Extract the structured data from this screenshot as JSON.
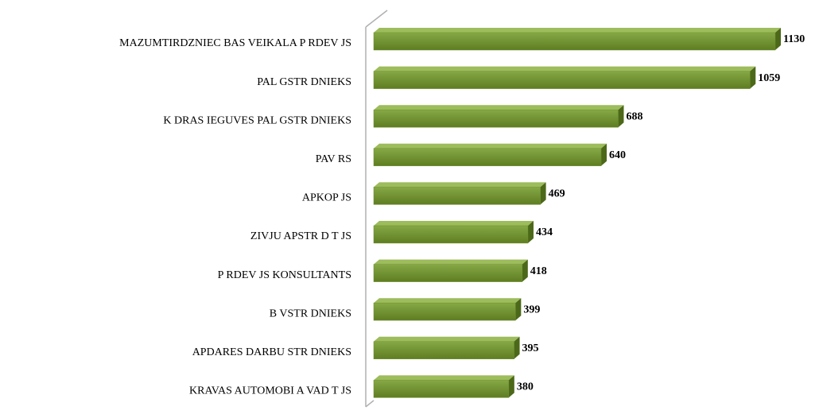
{
  "chart_data": {
    "type": "bar",
    "orientation": "horizontal",
    "categories": [
      "MAZUMTIRDZNIEC BAS VEIKALA P RDEV JS",
      "PAL GSTR DNIEKS",
      "K DRAS IEGUVES PAL GSTR DNIEKS",
      "PAV RS",
      "APKOP JS",
      "ZIVJU APSTR D T JS",
      "P RDEV JS KONSULTANTS",
      "B VSTR DNIEKS",
      "APDARES DARBU STR DNIEKS",
      "KRAVAS AUTOMOBI A VAD T JS"
    ],
    "values": [
      1130,
      1059,
      688,
      640,
      469,
      434,
      418,
      399,
      395,
      380
    ],
    "color": "#6f8f2e"
  }
}
